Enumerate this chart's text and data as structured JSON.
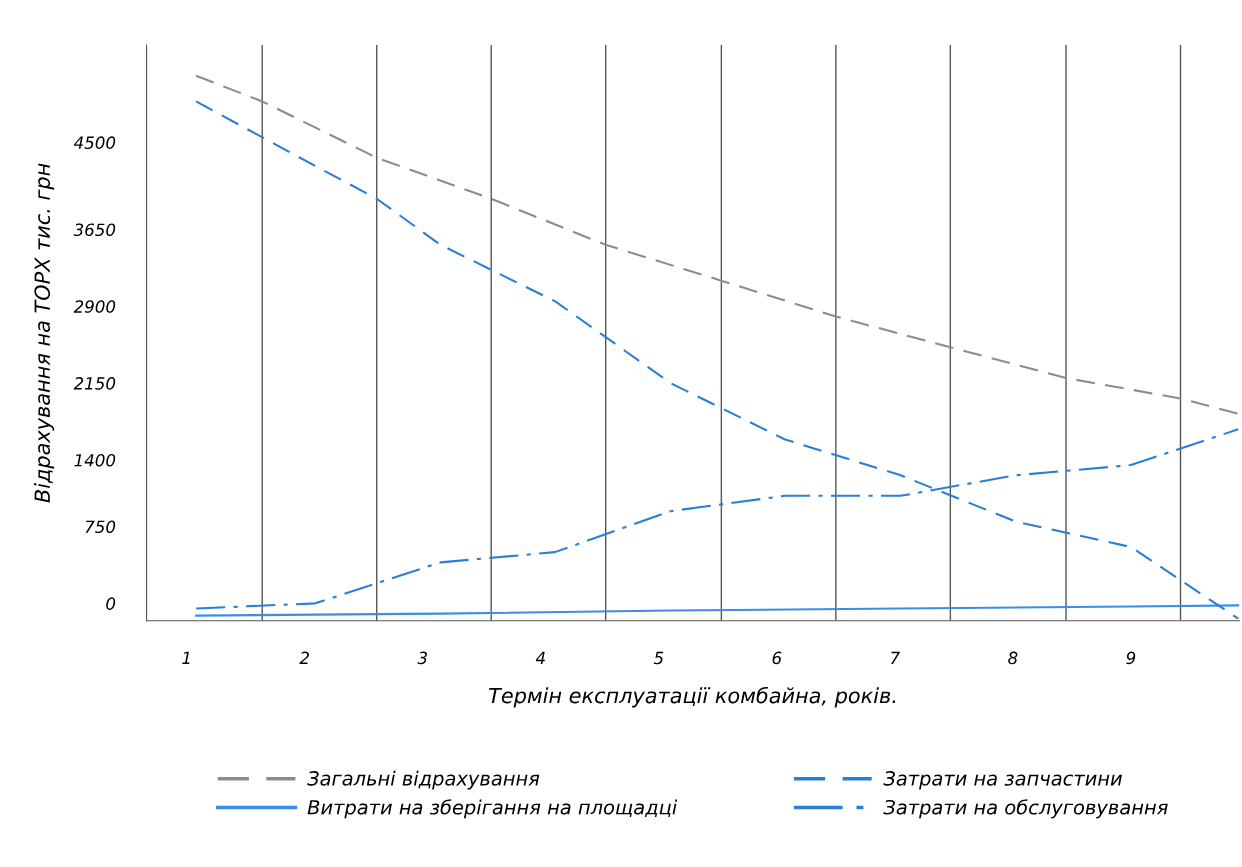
{
  "chart_data": {
    "type": "line",
    "xlabel": "Термін експлуатації комбайна, років.",
    "ylabel": "Відрахування на ТОРХ тис. грн",
    "xlim": [
      0.66,
      9.92
    ],
    "xticks": [
      1,
      2,
      3,
      4,
      5,
      6,
      7,
      8,
      9
    ],
    "ylim": [
      -170,
      5450
    ],
    "yticks": [
      0,
      750,
      1400,
      2150,
      2900,
      3650,
      4500
    ],
    "grid": false,
    "legend": "bottom",
    "marker": "none",
    "ref_lines": [
      {
        "axis": "x",
        "value": 1.64,
        "color": "#555555"
      },
      {
        "axis": "x",
        "value": 2.61,
        "color": "#555555"
      },
      {
        "axis": "x",
        "value": 3.58,
        "color": "#555555"
      },
      {
        "axis": "x",
        "value": 4.55,
        "color": "#555555"
      },
      {
        "axis": "x",
        "value": 5.53,
        "color": "#555555"
      },
      {
        "axis": "x",
        "value": 6.5,
        "color": "#555555"
      },
      {
        "axis": "x",
        "value": 7.47,
        "color": "#555555"
      },
      {
        "axis": "x",
        "value": 8.45,
        "color": "#555555"
      },
      {
        "axis": "x",
        "value": 9.42,
        "color": "#555555"
      }
    ],
    "series": [
      {
        "name": "Загальні відрахування",
        "color": "#8c8c8c",
        "line_style": "dashed",
        "x": [
          1.08,
          1.64,
          2.61,
          3.58,
          4.55,
          5.53,
          6.5,
          7.47,
          8.45,
          9.42,
          9.91
        ],
        "values": [
          5150,
          4900,
          4350,
          3950,
          3500,
          3150,
          2800,
          2500,
          2200,
          2000,
          1850
        ]
      },
      {
        "name": "Витрати на зберігання на площадці",
        "color": "#3a8ee6",
        "line_style": "solid",
        "x": [
          1.08,
          3.15,
          5.1,
          7.05,
          9.0,
          9.91
        ],
        "values": [
          -120,
          -100,
          -70,
          -50,
          -30,
          -20
        ]
      },
      {
        "name": "Затрати на запчастини",
        "color": "#2a7fd4",
        "line_style": "dashed",
        "x": [
          1.08,
          1.96,
          2.61,
          3.15,
          4.12,
          5.1,
          6.07,
          7.05,
          8.02,
          9.0,
          9.91
        ],
        "values": [
          4900,
          4350,
          3950,
          3500,
          2950,
          2150,
          1600,
          1250,
          800,
          550,
          -150
        ]
      },
      {
        "name": "Затрати на обслуговування",
        "color": "#2a7fd4",
        "line_style": "dashdot",
        "x": [
          1.08,
          2.09,
          3.15,
          4.12,
          5.1,
          6.07,
          7.05,
          8.02,
          9.0,
          9.91
        ],
        "values": [
          -50,
          0,
          400,
          500,
          900,
          1050,
          1050,
          1250,
          1350,
          1700
        ]
      }
    ]
  }
}
